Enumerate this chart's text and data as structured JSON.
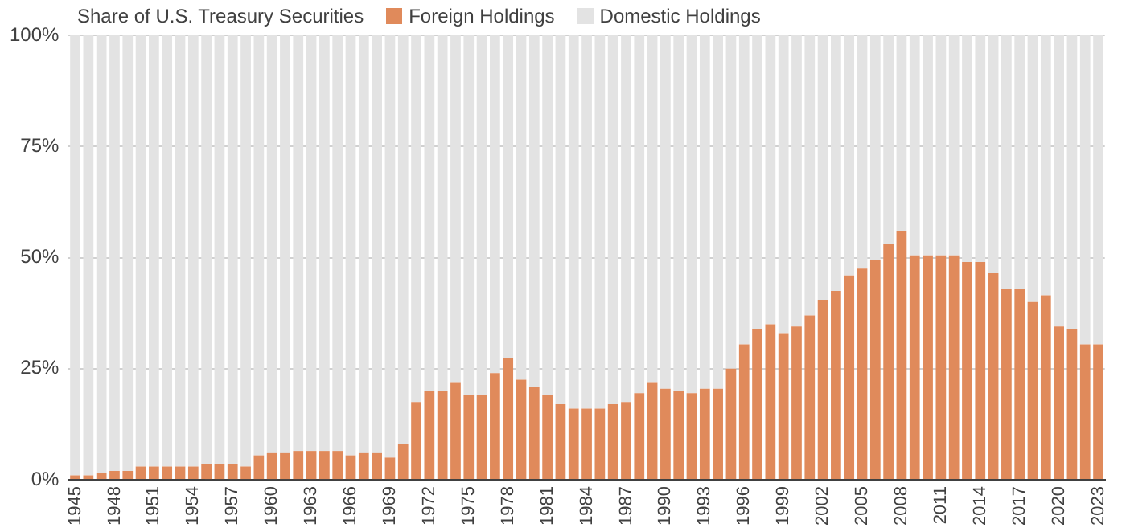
{
  "chart_data": {
    "type": "bar",
    "stacked": true,
    "legend_title": "Share of U.S. Treasury Securities",
    "legend": "top left",
    "grid": "y",
    "categories": [
      "1945",
      null,
      null,
      "1948",
      null,
      null,
      "1951",
      null,
      null,
      "1954",
      null,
      null,
      "1957",
      null,
      null,
      "1960",
      null,
      null,
      "1963",
      null,
      null,
      "1966",
      null,
      null,
      "1969",
      null,
      null,
      "1972",
      null,
      null,
      "1975",
      null,
      null,
      "1978",
      null,
      null,
      "1981",
      null,
      null,
      "1984",
      null,
      null,
      "1987",
      null,
      null,
      "1990",
      null,
      null,
      "1993",
      null,
      null,
      "1996",
      null,
      null,
      "1999",
      null,
      null,
      "2002",
      null,
      null,
      "2005",
      null,
      null,
      "2008",
      null,
      null,
      "2011",
      null,
      null,
      "2014",
      null,
      null,
      "2017",
      null,
      null,
      "2020",
      null,
      null,
      "2023"
    ],
    "ylim": [
      0,
      100
    ],
    "yticks": [
      {
        "value": 0,
        "label": "0%"
      },
      {
        "value": 25,
        "label": "25%"
      },
      {
        "value": 50,
        "label": "50%"
      },
      {
        "value": 75,
        "label": "75%"
      },
      {
        "value": 100,
        "label": "100%"
      }
    ],
    "series": [
      {
        "name": "Foreign Holdings",
        "color": "#e08a5b",
        "values": [
          1,
          1,
          1.5,
          2,
          2,
          3,
          3,
          3,
          3,
          3,
          3.5,
          3.5,
          3.5,
          3,
          5.5,
          6,
          6,
          6.5,
          6.5,
          6.5,
          6.5,
          5.5,
          6,
          6,
          5,
          8,
          17.5,
          20,
          20,
          22,
          19,
          19,
          24,
          27.5,
          22.5,
          21,
          19,
          17,
          16,
          16,
          16,
          17,
          17.5,
          19.5,
          22,
          20.5,
          20,
          19.5,
          20.5,
          20.5,
          25,
          30.5,
          34,
          35,
          33,
          34.5,
          37,
          40.5,
          42.5,
          46,
          47.5,
          49.5,
          53,
          56,
          50.5,
          50.5,
          50.5,
          50.5,
          49,
          49,
          46.5,
          43,
          43,
          40,
          41.5,
          34.5,
          34,
          30.5,
          30.5
        ]
      },
      {
        "name": "Domestic Holdings",
        "color": "#e3e3e3",
        "values": [
          99,
          99,
          98.5,
          98,
          98,
          97,
          97,
          97,
          97,
          97,
          96.5,
          96.5,
          96.5,
          97,
          94.5,
          94,
          94,
          93.5,
          93.5,
          93.5,
          93.5,
          94.5,
          94,
          94,
          95,
          92,
          82.5,
          80,
          80,
          78,
          81,
          81,
          76,
          72.5,
          77.5,
          79,
          81,
          83,
          84,
          84,
          84,
          83,
          82.5,
          80.5,
          78,
          79.5,
          80,
          80.5,
          79.5,
          79.5,
          75,
          69.5,
          66,
          65,
          67,
          65.5,
          63,
          59.5,
          57.5,
          54,
          52.5,
          50.5,
          47,
          44,
          49.5,
          49.5,
          49.5,
          49.5,
          51,
          51,
          53.5,
          57,
          57,
          60,
          58.5,
          65.5,
          66,
          69.5,
          69.5
        ]
      }
    ]
  }
}
